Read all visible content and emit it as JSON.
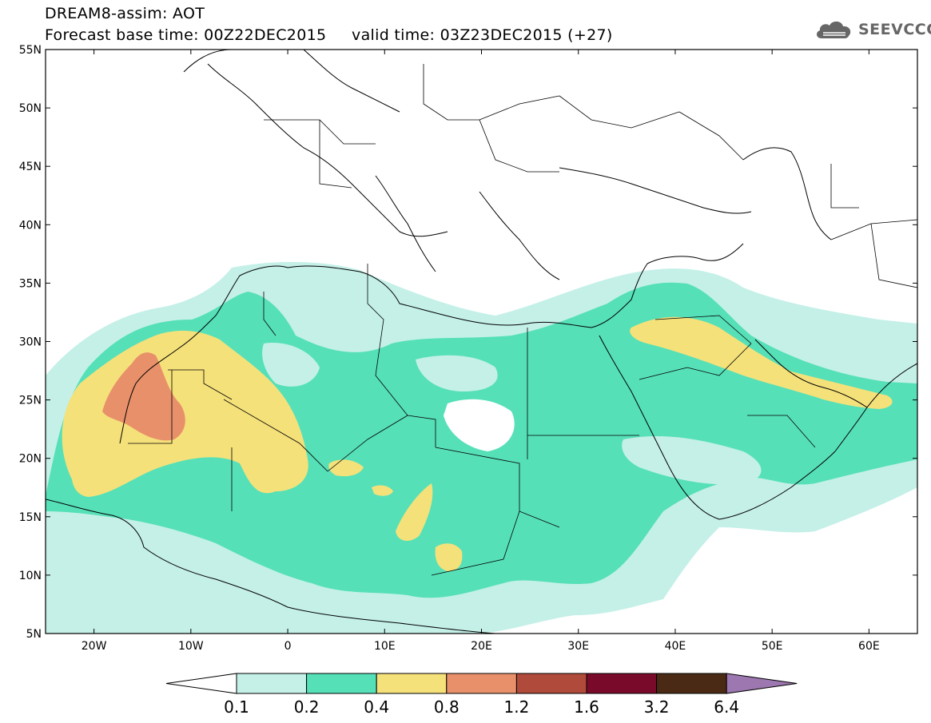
{
  "header": {
    "title": "DREAM8-assim: AOT",
    "subtitle": "Forecast base time: 00Z22DEC2015     valid time: 03Z23DEC2015 (+27)",
    "logo_text": "SEEVCCC"
  },
  "map": {
    "lat_range": [
      5,
      55
    ],
    "lon_range": [
      -25,
      65
    ],
    "lat_ticks": [
      "5N",
      "10N",
      "15N",
      "20N",
      "25N",
      "30N",
      "35N",
      "40N",
      "45N",
      "50N",
      "55N"
    ],
    "lon_ticks": [
      "20W",
      "10W",
      "0",
      "10E",
      "20E",
      "30E",
      "40E",
      "50E",
      "60E"
    ]
  },
  "legend": {
    "labels": [
      "0.1",
      "0.2",
      "0.4",
      "0.8",
      "1.2",
      "1.6",
      "3.2",
      "6.4"
    ],
    "colors": [
      "#c4f0e8",
      "#56e0b8",
      "#f5e17a",
      "#e8906a",
      "#b04a3a",
      "#7a0a2a",
      "#4a2a14",
      "#9d77b0"
    ],
    "under_color": "#ffffff",
    "over_color": "#9d77b0"
  }
}
